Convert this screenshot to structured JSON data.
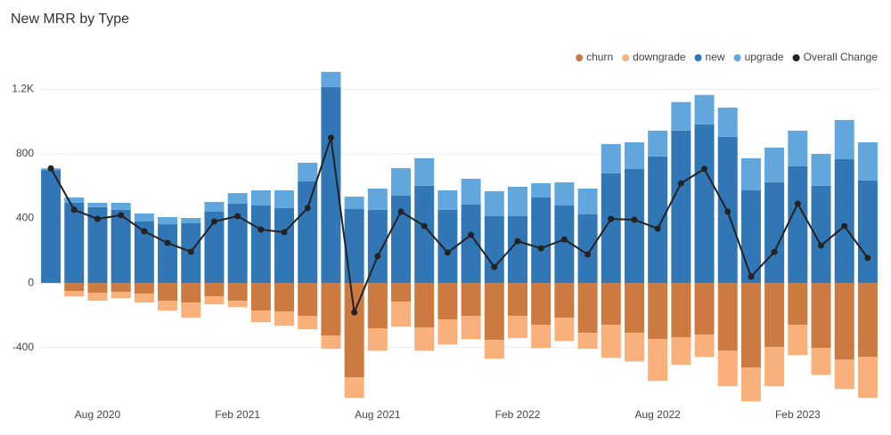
{
  "chart_data": {
    "type": "bar",
    "title": "New MRR by Type",
    "categories": [
      null,
      null,
      "Aug 2020",
      null,
      null,
      null,
      null,
      null,
      "Feb 2021",
      null,
      null,
      null,
      null,
      null,
      "Aug 2021",
      null,
      null,
      null,
      null,
      null,
      "Feb 2022",
      null,
      null,
      null,
      null,
      null,
      "Aug 2022",
      null,
      null,
      null,
      null,
      null,
      "Feb 2023",
      null,
      null,
      null
    ],
    "series": [
      {
        "name": "churn",
        "color": "#cc7a3f",
        "stack": "negative",
        "values": [
          0,
          -50,
          -60,
          -55,
          -66,
          -110,
          -121,
          -83,
          -110,
          -171,
          -177,
          -204,
          -326,
          -585,
          -282,
          -116,
          -276,
          -226,
          -204,
          -353,
          -204,
          -259,
          -215,
          -309,
          -259,
          -309,
          -348,
          -337,
          -320,
          -420,
          -524,
          -397,
          -259,
          -403,
          -475,
          -458
        ]
      },
      {
        "name": "downgrade",
        "color": "#f9b07a",
        "stack": "negative",
        "values": [
          0,
          -33,
          -50,
          -39,
          -55,
          -61,
          -94,
          -49,
          -39,
          -72,
          -88,
          -83,
          -82,
          -127,
          -138,
          -154,
          -144,
          -155,
          -144,
          -116,
          -138,
          -144,
          -144,
          -99,
          -205,
          -177,
          -259,
          -171,
          -138,
          -220,
          -210,
          -243,
          -188,
          -166,
          -182,
          -254
        ]
      },
      {
        "name": "new",
        "color": "#3277b5",
        "stack": "positive",
        "values": [
          700,
          497,
          470,
          453,
          381,
          364,
          370,
          442,
          491,
          480,
          464,
          629,
          1214,
          458,
          453,
          541,
          602,
          453,
          486,
          414,
          414,
          530,
          480,
          425,
          679,
          707,
          784,
          944,
          983,
          905,
          574,
          624,
          723,
          602,
          767,
          635
        ]
      },
      {
        "name": "upgrade",
        "color": "#61a6dd",
        "stack": "positive",
        "values": [
          10,
          33,
          27,
          44,
          50,
          44,
          33,
          60,
          66,
          94,
          110,
          116,
          94,
          77,
          132,
          171,
          171,
          121,
          160,
          155,
          182,
          88,
          144,
          160,
          182,
          165,
          160,
          177,
          182,
          182,
          199,
          215,
          221,
          198,
          243,
          237
        ]
      },
      {
        "name": "Overall Change",
        "color": "#222222",
        "type": "line",
        "values": [
          710,
          453,
          397,
          420,
          320,
          248,
          193,
          381,
          414,
          331,
          315,
          464,
          900,
          -182,
          166,
          442,
          353,
          188,
          298,
          99,
          259,
          215,
          270,
          177,
          397,
          392,
          337,
          618,
          707,
          442,
          39,
          193,
          491,
          232,
          353,
          155
        ]
      }
    ],
    "ylim": [
      -760,
      1340
    ],
    "yticks": [
      -400,
      0,
      400,
      800,
      {
        "value": 1200,
        "label": "1.2K"
      }
    ],
    "grid": true,
    "legend": "top-right"
  }
}
